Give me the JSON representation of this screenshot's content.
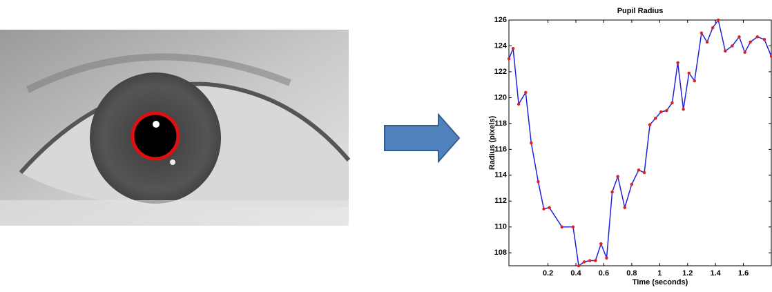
{
  "chart_data": {
    "type": "line",
    "title": "Pupil Radius",
    "xlabel": "Time (seconds)",
    "ylabel": "Radius (pixels)",
    "x": [
      -0.08,
      -0.05,
      -0.01,
      0.04,
      0.08,
      0.13,
      0.17,
      0.21,
      0.3,
      0.38,
      0.42,
      0.46,
      0.5,
      0.54,
      0.58,
      0.62,
      0.66,
      0.7,
      0.75,
      0.8,
      0.85,
      0.89,
      0.93,
      0.97,
      1.01,
      1.05,
      1.09,
      1.13,
      1.17,
      1.21,
      1.25,
      1.3,
      1.34,
      1.38,
      1.42,
      1.47,
      1.52,
      1.57,
      1.61,
      1.65,
      1.7,
      1.75,
      1.8
    ],
    "series": [
      {
        "color": "#1f1fdc",
        "marker_color": "#e02020",
        "values": [
          123.0,
          123.8,
          119.5,
          120.4,
          116.5,
          113.5,
          111.4,
          111.5,
          110.0,
          110.0,
          107.0,
          107.3,
          107.4,
          107.4,
          108.7,
          107.6,
          112.7,
          113.9,
          111.5,
          113.3,
          114.4,
          114.2,
          117.9,
          118.4,
          118.9,
          119.0,
          119.6,
          122.7,
          119.1,
          121.9,
          121.3,
          125.0,
          124.3,
          125.4,
          126.0,
          123.6,
          124.0,
          124.7,
          123.5,
          124.3,
          124.7,
          124.5,
          123.2
        ]
      }
    ],
    "xlim": [
      -0.08,
      1.8
    ],
    "xticks": [
      0.2,
      0.4,
      0.6,
      0.8,
      1,
      1.2,
      1.4,
      1.6
    ],
    "ylim": [
      107,
      126
    ],
    "yticks": [
      108,
      110,
      112,
      114,
      116,
      118,
      120,
      122,
      124,
      126
    ]
  }
}
